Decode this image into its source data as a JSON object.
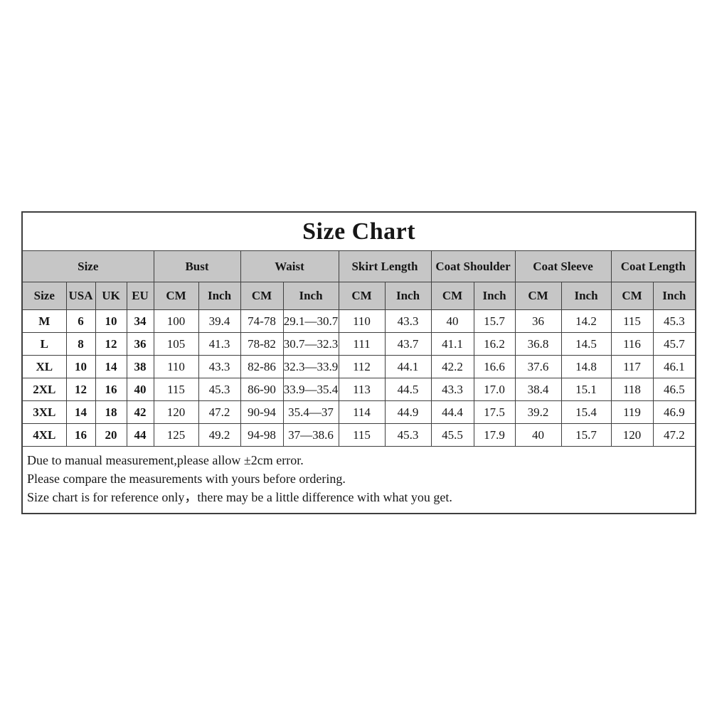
{
  "title": "Size Chart",
  "chart_data": {
    "type": "table",
    "title": "Size Chart",
    "column_groups": [
      {
        "label": "Size",
        "span": 4
      },
      {
        "label": "Bust",
        "span": 2
      },
      {
        "label": "Waist",
        "span": 2
      },
      {
        "label": "Skirt Length",
        "span": 2
      },
      {
        "label": "Coat Shoulder",
        "span": 2
      },
      {
        "label": "Coat Sleeve",
        "span": 2
      },
      {
        "label": "Coat Length",
        "span": 2
      }
    ],
    "sub_headers": [
      "Size",
      "USA",
      "UK",
      "EU",
      "CM",
      "Inch",
      "CM",
      "Inch",
      "CM",
      "Inch",
      "CM",
      "Inch",
      "CM",
      "Inch",
      "CM",
      "Inch"
    ],
    "rows": [
      [
        "M",
        "6",
        "10",
        "34",
        "100",
        "39.4",
        "74-78",
        "29.1—30.7",
        "110",
        "43.3",
        "40",
        "15.7",
        "36",
        "14.2",
        "115",
        "45.3"
      ],
      [
        "L",
        "8",
        "12",
        "36",
        "105",
        "41.3",
        "78-82",
        "30.7—32.3",
        "111",
        "43.7",
        "41.1",
        "16.2",
        "36.8",
        "14.5",
        "116",
        "45.7"
      ],
      [
        "XL",
        "10",
        "14",
        "38",
        "110",
        "43.3",
        "82-86",
        "32.3—33.9",
        "112",
        "44.1",
        "42.2",
        "16.6",
        "37.6",
        "14.8",
        "117",
        "46.1"
      ],
      [
        "2XL",
        "12",
        "16",
        "40",
        "115",
        "45.3",
        "86-90",
        "33.9—35.4",
        "113",
        "44.5",
        "43.3",
        "17.0",
        "38.4",
        "15.1",
        "118",
        "46.5"
      ],
      [
        "3XL",
        "14",
        "18",
        "42",
        "120",
        "47.2",
        "90-94",
        "35.4—37",
        "114",
        "44.9",
        "44.4",
        "17.5",
        "39.2",
        "15.4",
        "119",
        "46.9"
      ],
      [
        "4XL",
        "16",
        "20",
        "44",
        "125",
        "49.2",
        "94-98",
        "37—38.6",
        "115",
        "45.3",
        "45.5",
        "17.9",
        "40",
        "15.7",
        "120",
        "47.2"
      ]
    ],
    "notes": [
      "Due to manual measurement,please allow ±2cm error.",
      "Please compare the measurements with yours before ordering.",
      "Size chart is for reference only，there may be a little difference with what you get."
    ]
  },
  "colors": {
    "header_bg": "#c6c6c6",
    "border": "#3f3f3f",
    "text": "#161616",
    "background": "#ffffff"
  }
}
